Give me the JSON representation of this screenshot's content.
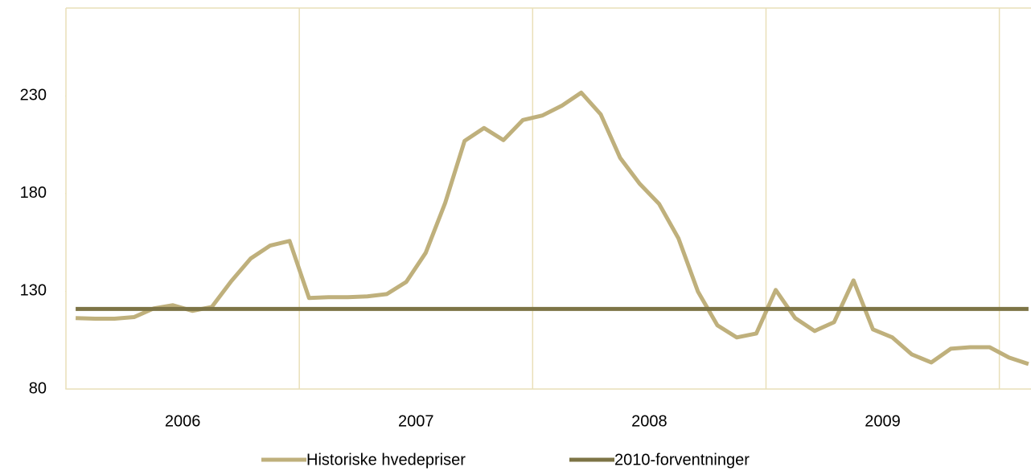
{
  "chart_data": {
    "type": "line",
    "categories": [
      null,
      null,
      null,
      null,
      null,
      null,
      "2006",
      null,
      null,
      null,
      null,
      null,
      null,
      null,
      null,
      null,
      null,
      null,
      "2007",
      null,
      null,
      null,
      null,
      null,
      null,
      null,
      null,
      null,
      null,
      null,
      "2008",
      null,
      null,
      null,
      null,
      null,
      null,
      null,
      null,
      null,
      null,
      null,
      "2009",
      null,
      null,
      null,
      null,
      null,
      null,
      null
    ],
    "series": [
      {
        "name": "Historiske hvedepriser",
        "color": "#bfb07c",
        "values": [
          116.3,
          116,
          116,
          116.8,
          121.2,
          122.9,
          120,
          122,
          135.2,
          146.8,
          153.4,
          155.8,
          126.6,
          127,
          127,
          127.4,
          128.6,
          134.8,
          149.7,
          175.2,
          207,
          213.6,
          207.4,
          217.7,
          220,
          225,
          231.7,
          220.6,
          198.3,
          185.1,
          174.8,
          157.1,
          129.9,
          112.6,
          106.4,
          108.4,
          130.7,
          116.3,
          109.7,
          114.2,
          135.6,
          110.5,
          106.4,
          97.7,
          93.6,
          100.6,
          101.4,
          101.4,
          96.1,
          92.8
        ]
      },
      {
        "name": "2010-forventninger",
        "color": "#7d7446",
        "values": [
          121,
          121,
          121,
          121,
          121,
          121,
          121,
          121,
          121,
          121,
          121,
          121,
          121,
          121,
          121,
          121,
          121,
          121,
          121,
          121,
          121,
          121,
          121,
          121,
          121,
          121,
          121,
          121,
          121,
          121,
          121,
          121,
          121,
          121,
          121,
          121,
          121,
          121,
          121,
          121,
          121,
          121,
          121,
          121,
          121,
          121,
          121,
          121,
          121,
          121
        ]
      }
    ],
    "ylim": [
      80,
      275
    ],
    "yticks": [
      80,
      130,
      180,
      230
    ],
    "legend": "bottom"
  }
}
